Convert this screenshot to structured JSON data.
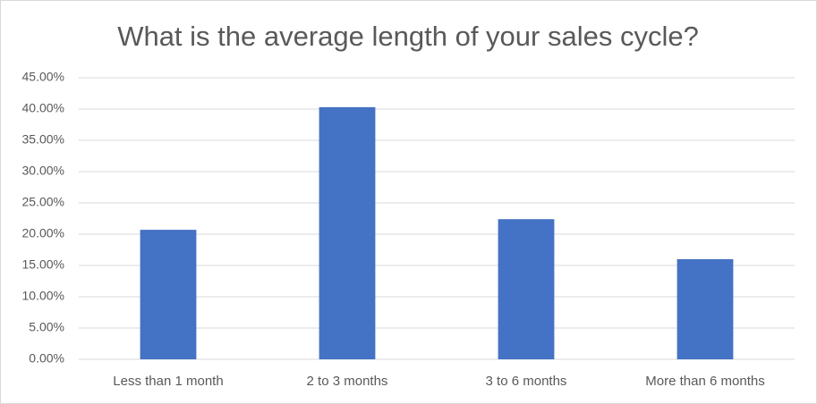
{
  "chart_data": {
    "type": "bar",
    "title": "What is the average length of your sales cycle?",
    "categories": [
      "Less than 1 month",
      "2 to 3 months",
      "3 to 6 months",
      "More than 6 months"
    ],
    "values": [
      20.7,
      40.3,
      22.4,
      16.0
    ],
    "color": "#4472c4",
    "ylim": [
      0,
      45
    ],
    "yticks": [
      {
        "value": 0,
        "label": "0.00%"
      },
      {
        "value": 5,
        "label": "5.00%"
      },
      {
        "value": 10,
        "label": "10.00%"
      },
      {
        "value": 15,
        "label": "15.00%"
      },
      {
        "value": 20,
        "label": "20.00%"
      },
      {
        "value": 25,
        "label": "25.00%"
      },
      {
        "value": 30,
        "label": "30.00%"
      },
      {
        "value": 35,
        "label": "35.00%"
      },
      {
        "value": 40,
        "label": "40.00%"
      },
      {
        "value": 45,
        "label": "45.00%"
      }
    ],
    "grid": true
  }
}
